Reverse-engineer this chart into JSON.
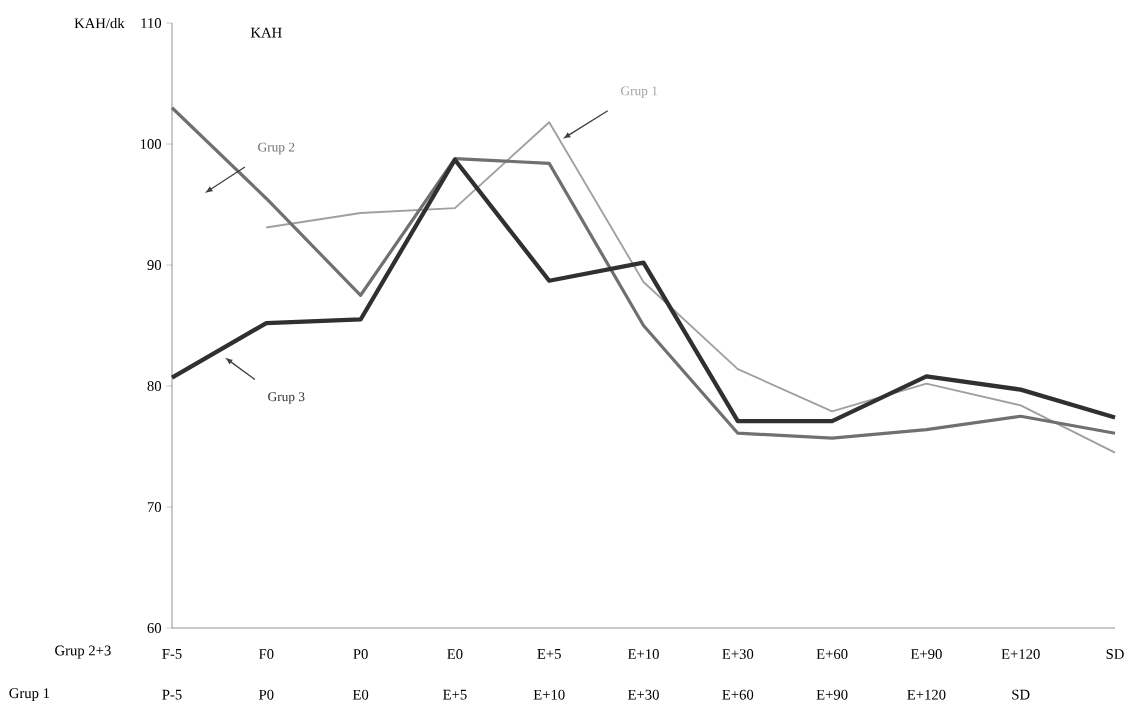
{
  "chart_data": {
    "type": "line",
    "title": "KAH",
    "ylabel": "KAH/dk",
    "categories": [
      "F-5",
      "F0",
      "P0",
      "E0",
      "E+5",
      "E+10",
      "E+30",
      "E+60",
      "E+90",
      "E+120",
      "SD"
    ],
    "series": [
      {
        "name": "Grup 1",
        "color": "#a0a0a0",
        "values": [
          null,
          93.1,
          94.3,
          94.7,
          101.8,
          88.6,
          81.4,
          77.9,
          80.2,
          78.4,
          74.5
        ]
      },
      {
        "name": "Grup 2",
        "color": "#707070",
        "values": [
          103.0,
          95.5,
          87.5,
          98.8,
          98.4,
          85.0,
          76.1,
          75.7,
          76.4,
          77.5,
          76.1
        ]
      },
      {
        "name": "Grup 3",
        "color": "#303030",
        "values": [
          80.7,
          85.2,
          85.5,
          98.7,
          88.7,
          90.2,
          77.1,
          77.1,
          80.8,
          79.7,
          77.4
        ]
      }
    ],
    "ylim": [
      60,
      110
    ],
    "yticks": [
      60,
      70,
      80,
      90,
      100,
      110
    ],
    "grid": false,
    "marker": "none",
    "line_style": "solid",
    "annotations": [
      "Grup 2+3",
      "Grup 1",
      "P-5",
      "P0",
      "E0",
      "E+5",
      "E+10",
      "E+30",
      "E+60",
      "E+90",
      "E+120",
      "SD"
    ]
  }
}
